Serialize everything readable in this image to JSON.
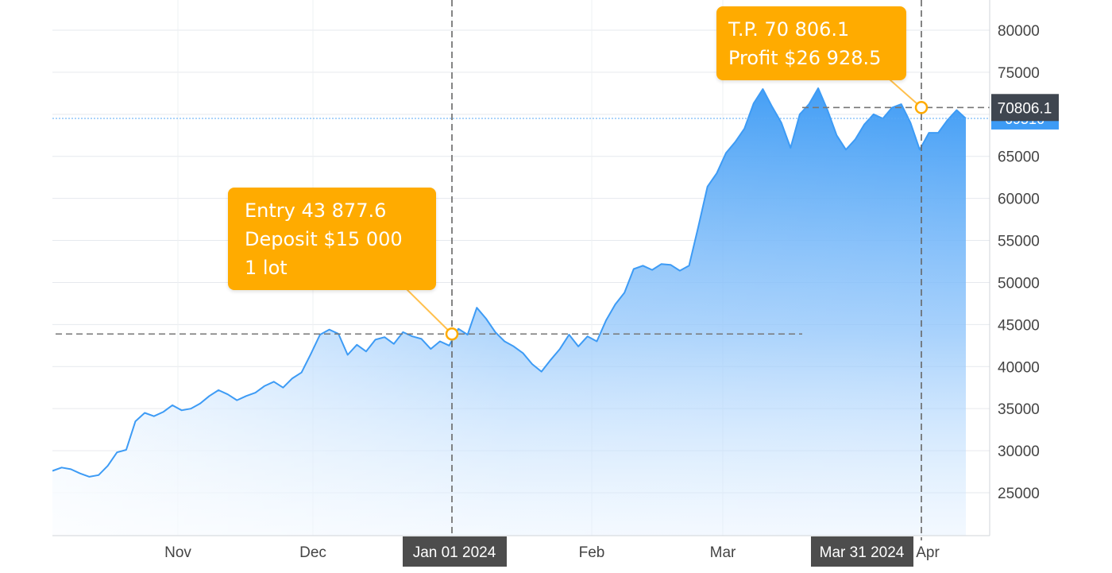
{
  "chart_data": {
    "type": "area",
    "title": "",
    "xlabel": "",
    "ylabel": "",
    "ylim": [
      20000,
      82000
    ],
    "y_ticks": [
      25000,
      30000,
      35000,
      40000,
      45000,
      50000,
      55000,
      60000,
      65000,
      70000,
      75000,
      80000
    ],
    "x_labels": [
      "Nov",
      "Dec",
      "Feb",
      "Mar",
      "Apr"
    ],
    "grid": true,
    "legend": "none",
    "series": [
      {
        "color": "#3d9bf5",
        "values": [
          27600,
          28000,
          27800,
          27300,
          26900,
          27100,
          28200,
          29800,
          30100,
          33500,
          34500,
          34100,
          34600,
          35400,
          34800,
          35000,
          35600,
          36500,
          37200,
          36700,
          36000,
          36500,
          36900,
          37700,
          38200,
          37500,
          38600,
          39300,
          41500,
          43800,
          44400,
          43900,
          41400,
          42600,
          41800,
          43200,
          43500,
          42700,
          44100,
          43600,
          43300,
          42100,
          43000,
          42500,
          44500,
          43800,
          47000,
          45700,
          44100,
          43000,
          42400,
          41600,
          40300,
          39400,
          40800,
          42100,
          43800,
          42400,
          43600,
          43000,
          45500,
          47400,
          48800,
          51600,
          52000,
          51500,
          52200,
          52100,
          51400,
          52000,
          56600,
          61400,
          63000,
          65400,
          66700,
          68300,
          71300,
          73000,
          70900,
          69000,
          66000,
          70000,
          71200,
          73100,
          70500,
          67500,
          65800,
          67000,
          68800,
          70000,
          69500,
          70800,
          71200,
          69000,
          65800,
          67800,
          67800,
          69300,
          70500,
          69500
        ]
      }
    ],
    "reference_lines": {
      "horizontal_value": 69516,
      "entry_level": 43877.6,
      "tp_level": 70806.1
    },
    "annotations": {
      "entry": {
        "lines": [
          "Entry 43 877.6",
          "Deposit $15 000",
          "1 lot"
        ]
      },
      "take_profit": {
        "lines": [
          "T.P. 70 806.1",
          "Profit $26 928.5"
        ]
      },
      "date_labels": [
        "Jan 01 2024",
        "Mar 31 2024"
      ],
      "price_label": "70806.1",
      "current_price_label": "69516"
    }
  }
}
